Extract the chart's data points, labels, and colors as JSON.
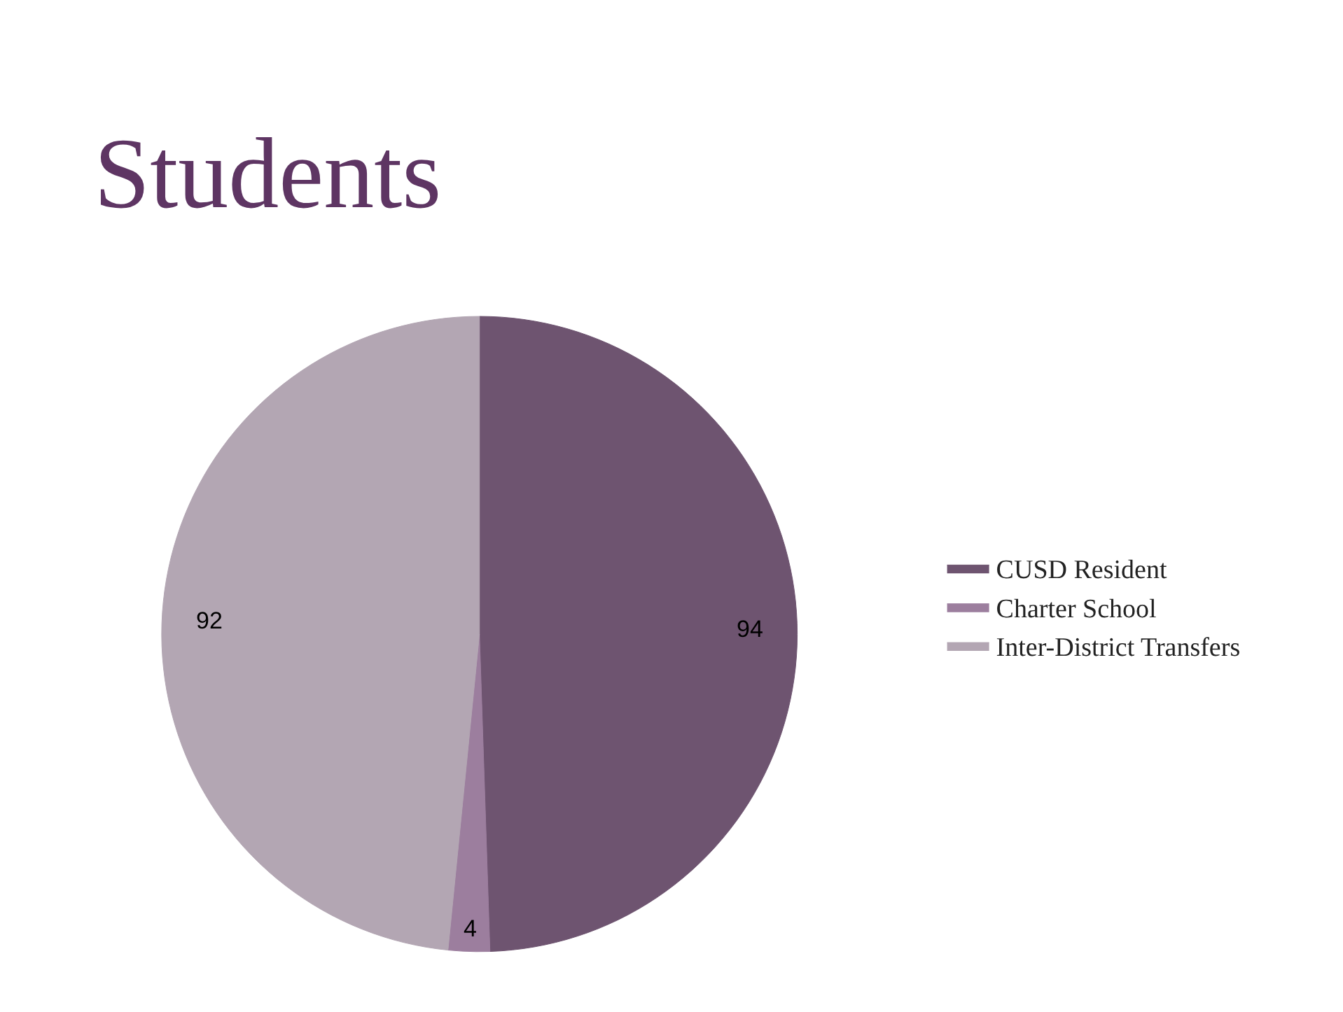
{
  "chart_data": {
    "type": "pie",
    "title": "Students",
    "categories": [
      "CUSD Resident",
      "Charter School",
      "Inter-District Transfers"
    ],
    "values": [
      94,
      4,
      92
    ],
    "colors": [
      "#6e5470",
      "#9c7e9e",
      "#b3a6b3"
    ],
    "data_labels": true,
    "legend": "right"
  }
}
